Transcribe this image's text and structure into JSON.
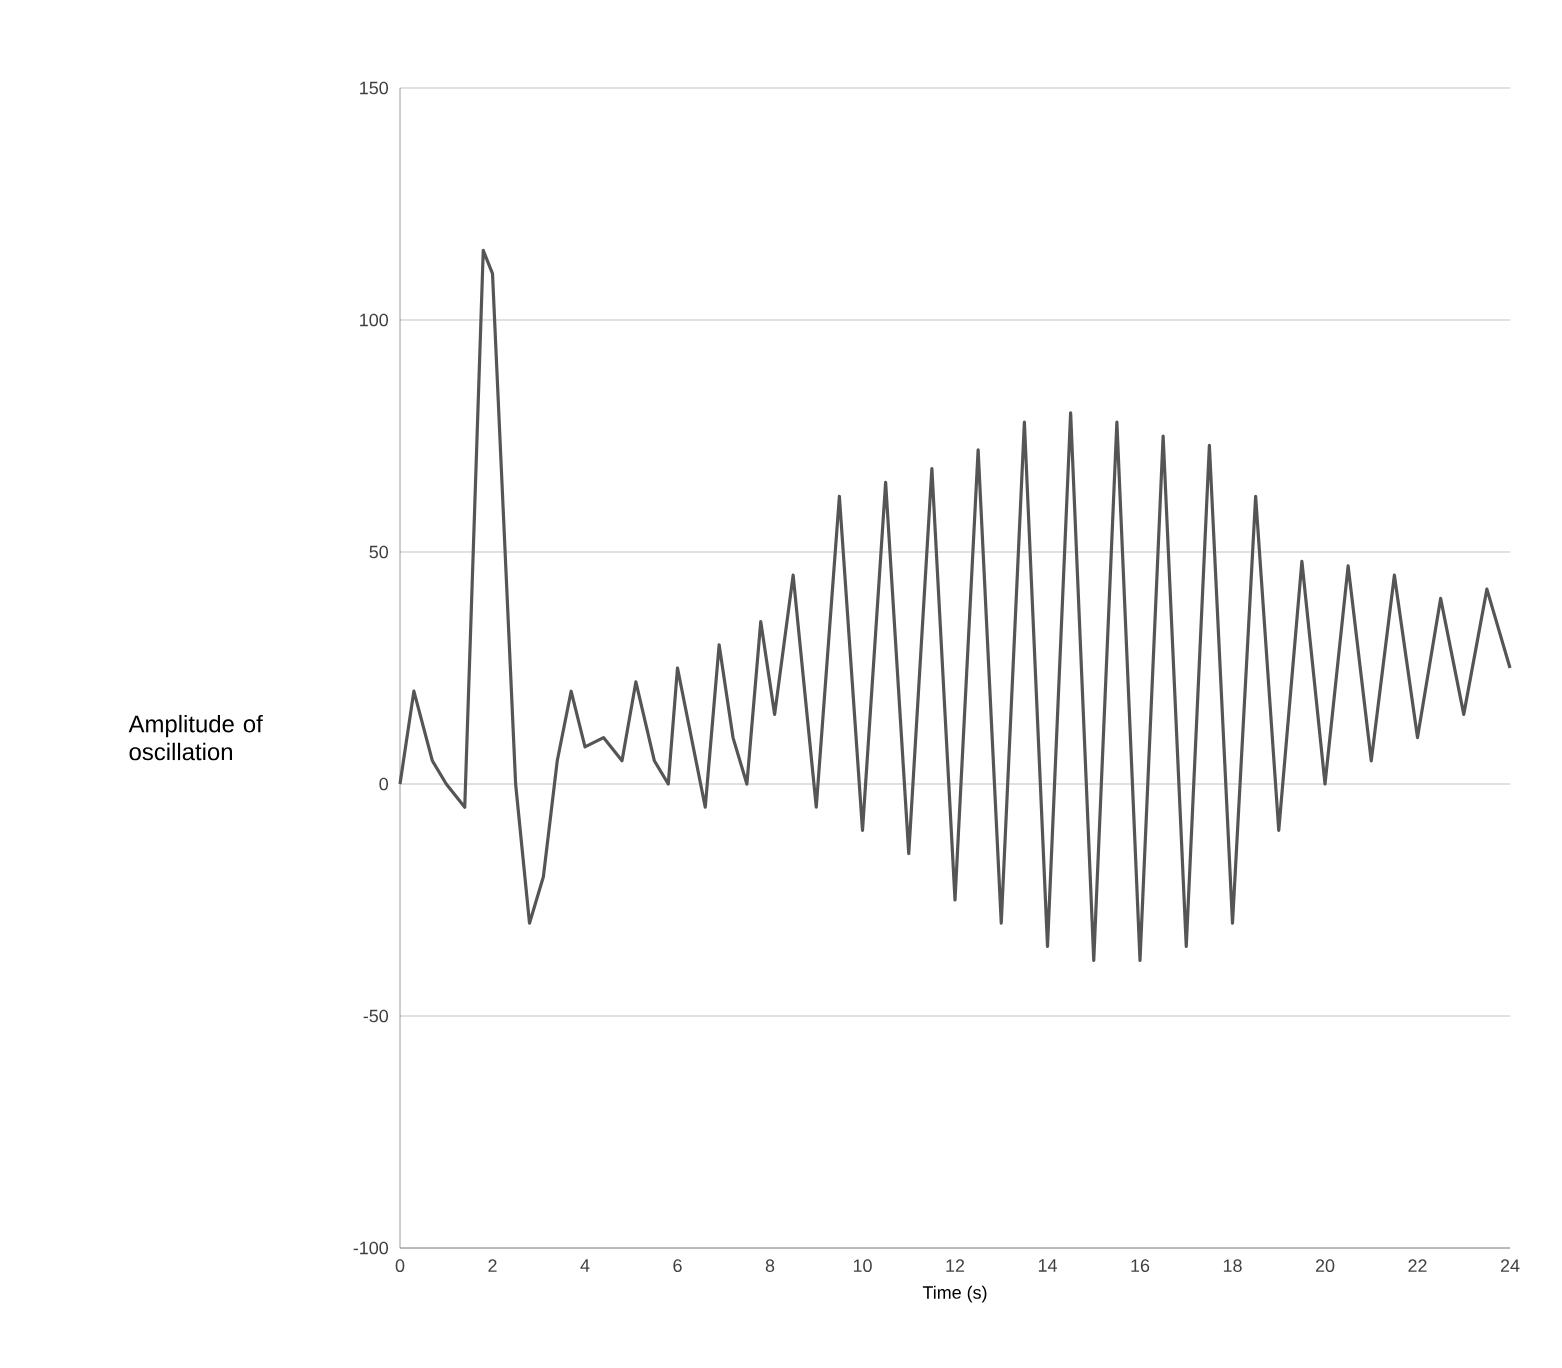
{
  "chart_data": {
    "type": "line",
    "xlabel": "Time (s)",
    "ylabel": "Amplitude of oscillation",
    "x": [
      0,
      0.3,
      0.7,
      1.0,
      1.4,
      1.8,
      2.0,
      2.5,
      2.8,
      3.1,
      3.4,
      3.7,
      4.0,
      4.4,
      4.8,
      5.1,
      5.5,
      5.8,
      6.0,
      6.3,
      6.6,
      6.9,
      7.2,
      7.5,
      7.8,
      8.1,
      8.5,
      9.0,
      9.5,
      10.0,
      10.5,
      11.0,
      11.5,
      12.0,
      12.5,
      13.0,
      13.5,
      14.0,
      14.5,
      15.0,
      15.5,
      16.0,
      16.5,
      17.0,
      17.5,
      18.0,
      18.5,
      19.0,
      19.5,
      20.0,
      20.5,
      21.0,
      21.5,
      22.0,
      22.5,
      23.0,
      23.5,
      24.0
    ],
    "series": [
      {
        "color": "#555555",
        "values": [
          0,
          20,
          5,
          0,
          -5,
          115,
          110,
          0,
          -30,
          -20,
          5,
          20,
          8,
          10,
          5,
          22,
          5,
          0,
          25,
          10,
          -5,
          30,
          10,
          0,
          35,
          15,
          45,
          -5,
          62,
          -10,
          65,
          -15,
          68,
          -25,
          72,
          -30,
          78,
          -35,
          80,
          -38,
          78,
          -38,
          75,
          -35,
          73,
          -30,
          62,
          -10,
          48,
          0,
          47,
          5,
          45,
          10,
          40,
          15,
          42,
          25
        ]
      }
    ],
    "xlim": [
      0,
      24
    ],
    "xticks": [
      0,
      2,
      4,
      6,
      8,
      10,
      12,
      14,
      16,
      18,
      20,
      22,
      24
    ],
    "ylim": [
      -100,
      150
    ],
    "yticks": [
      -100,
      -50,
      0,
      50,
      100,
      150
    ],
    "grid": "y",
    "line_style": "solid"
  }
}
